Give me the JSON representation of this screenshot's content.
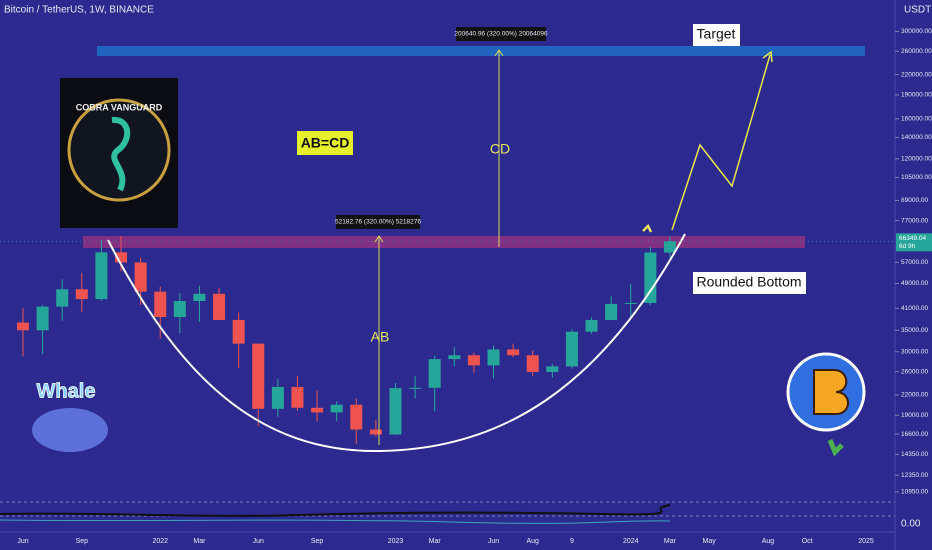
{
  "chart_data": {
    "type": "candlestick",
    "title": "Bitcoin / TetherUS, 1W, BINANCE",
    "unit": "USDT",
    "categories": [
      "Jun",
      null,
      null,
      "Sep",
      null,
      null,
      null,
      "2022",
      null,
      "Mar",
      null,
      null,
      "Jun",
      null,
      null,
      "Sep",
      null,
      null,
      null,
      "2023",
      null,
      "Mar",
      null,
      null,
      "Jun",
      null,
      "Aug",
      null,
      "9",
      null,
      null,
      "2024",
      null,
      "Mar",
      null,
      "May",
      null,
      null,
      "Aug",
      null,
      "Oct",
      null,
      null,
      "2025"
    ],
    "open": [
      37000,
      35000,
      41500,
      47000,
      43800,
      61300,
      57000,
      46200,
      38500,
      43200,
      45500,
      37700,
      31800,
      19900,
      23300,
      20050,
      19400,
      20500,
      17150,
      16550,
      23100,
      23150,
      28450,
      29250,
      27200,
      30500,
      29250,
      25950,
      27000,
      34650,
      37700,
      42300,
      42600,
      61200,
      null,
      null,
      null,
      null,
      null,
      null,
      null,
      null,
      null,
      null
    ],
    "high": [
      41000,
      42000,
      50500,
      52900,
      67000,
      69000,
      59000,
      47900,
      45800,
      48200,
      47400,
      39800,
      31900,
      24700,
      25200,
      22700,
      20990,
      21450,
      18400,
      23950,
      25250,
      29200,
      31000,
      29800,
      31400,
      31800,
      30250,
      27500,
      35200,
      38400,
      44700,
      48950,
      63900,
      69000,
      null,
      null,
      null,
      null,
      null,
      null,
      null,
      null,
      null,
      null
    ],
    "low": [
      29000,
      29500,
      37500,
      40000,
      43300,
      53500,
      42000,
      33000,
      34300,
      37200,
      37700,
      26700,
      17600,
      18800,
      19600,
      18150,
      18200,
      15500,
      16300,
      16500,
      21400,
      19550,
      27000,
      25800,
      24800,
      28850,
      25150,
      24900,
      26550,
      34100,
      37600,
      38500,
      41900,
      59000,
      null,
      null,
      null,
      null,
      null,
      null,
      null,
      null,
      null,
      null
    ],
    "close": [
      35000,
      41500,
      47000,
      43800,
      61300,
      57000,
      46200,
      38500,
      43200,
      45500,
      37700,
      31800,
      19900,
      23300,
      20050,
      19400,
      20500,
      17150,
      16550,
      23100,
      23150,
      28450,
      29250,
      27200,
      30500,
      29250,
      25950,
      27000,
      34650,
      37700,
      42300,
      42600,
      61200,
      66349.04,
      null,
      null,
      null,
      null,
      null,
      null,
      null,
      null,
      null,
      null
    ],
    "up_color": "#26a69a",
    "down_color": "#ef5350",
    "log_scale": true,
    "grid": false,
    "ylim": [
      8330,
      376000
    ],
    "yticks": [
      {
        "value": 300000,
        "label": "300000.00"
      },
      {
        "value": 260000,
        "label": "260000.00"
      },
      {
        "value": 220000,
        "label": "220000.00"
      },
      {
        "value": 190000,
        "label": "190000.00"
      },
      {
        "value": 160000,
        "label": "160000.00"
      },
      {
        "value": 140000,
        "label": "140000.00"
      },
      {
        "value": 120000,
        "label": "120000.00"
      },
      {
        "value": 105000,
        "label": "105000.00"
      },
      {
        "value": 89000,
        "label": "89000.00"
      },
      {
        "value": 77000,
        "label": "77000.00"
      },
      {
        "value": 57000,
        "label": "57000.00"
      },
      {
        "value": 49000,
        "label": "49000.00"
      },
      {
        "value": 41000,
        "label": "41000.00"
      },
      {
        "value": 35000,
        "label": "35000.00"
      },
      {
        "value": 30000,
        "label": "30000.00"
      },
      {
        "value": 26000,
        "label": "26000.00"
      },
      {
        "value": 22000,
        "label": "22000.00"
      },
      {
        "value": 19000,
        "label": "19000.00"
      },
      {
        "value": 16600,
        "label": "16600.00"
      },
      {
        "value": 14350,
        "label": "14350.00"
      },
      {
        "value": 12350,
        "label": "12350.00"
      },
      {
        "value": 10950,
        "label": "10950.00"
      }
    ],
    "countdown": "6d 9h",
    "indicator_label": "0.00",
    "annotations": {
      "target": "Target",
      "pattern": "AB=CD",
      "cd": "CD",
      "ab": "AB",
      "rounded": "Rounded Bottom",
      "cd_measure": "200640.96 (320.00%) 20064096",
      "ab_measure": "52182.76 (320.00%) 5218276"
    },
    "logos": {
      "cobra": "COBRA VANGUARD",
      "whale": "Whale"
    }
  }
}
